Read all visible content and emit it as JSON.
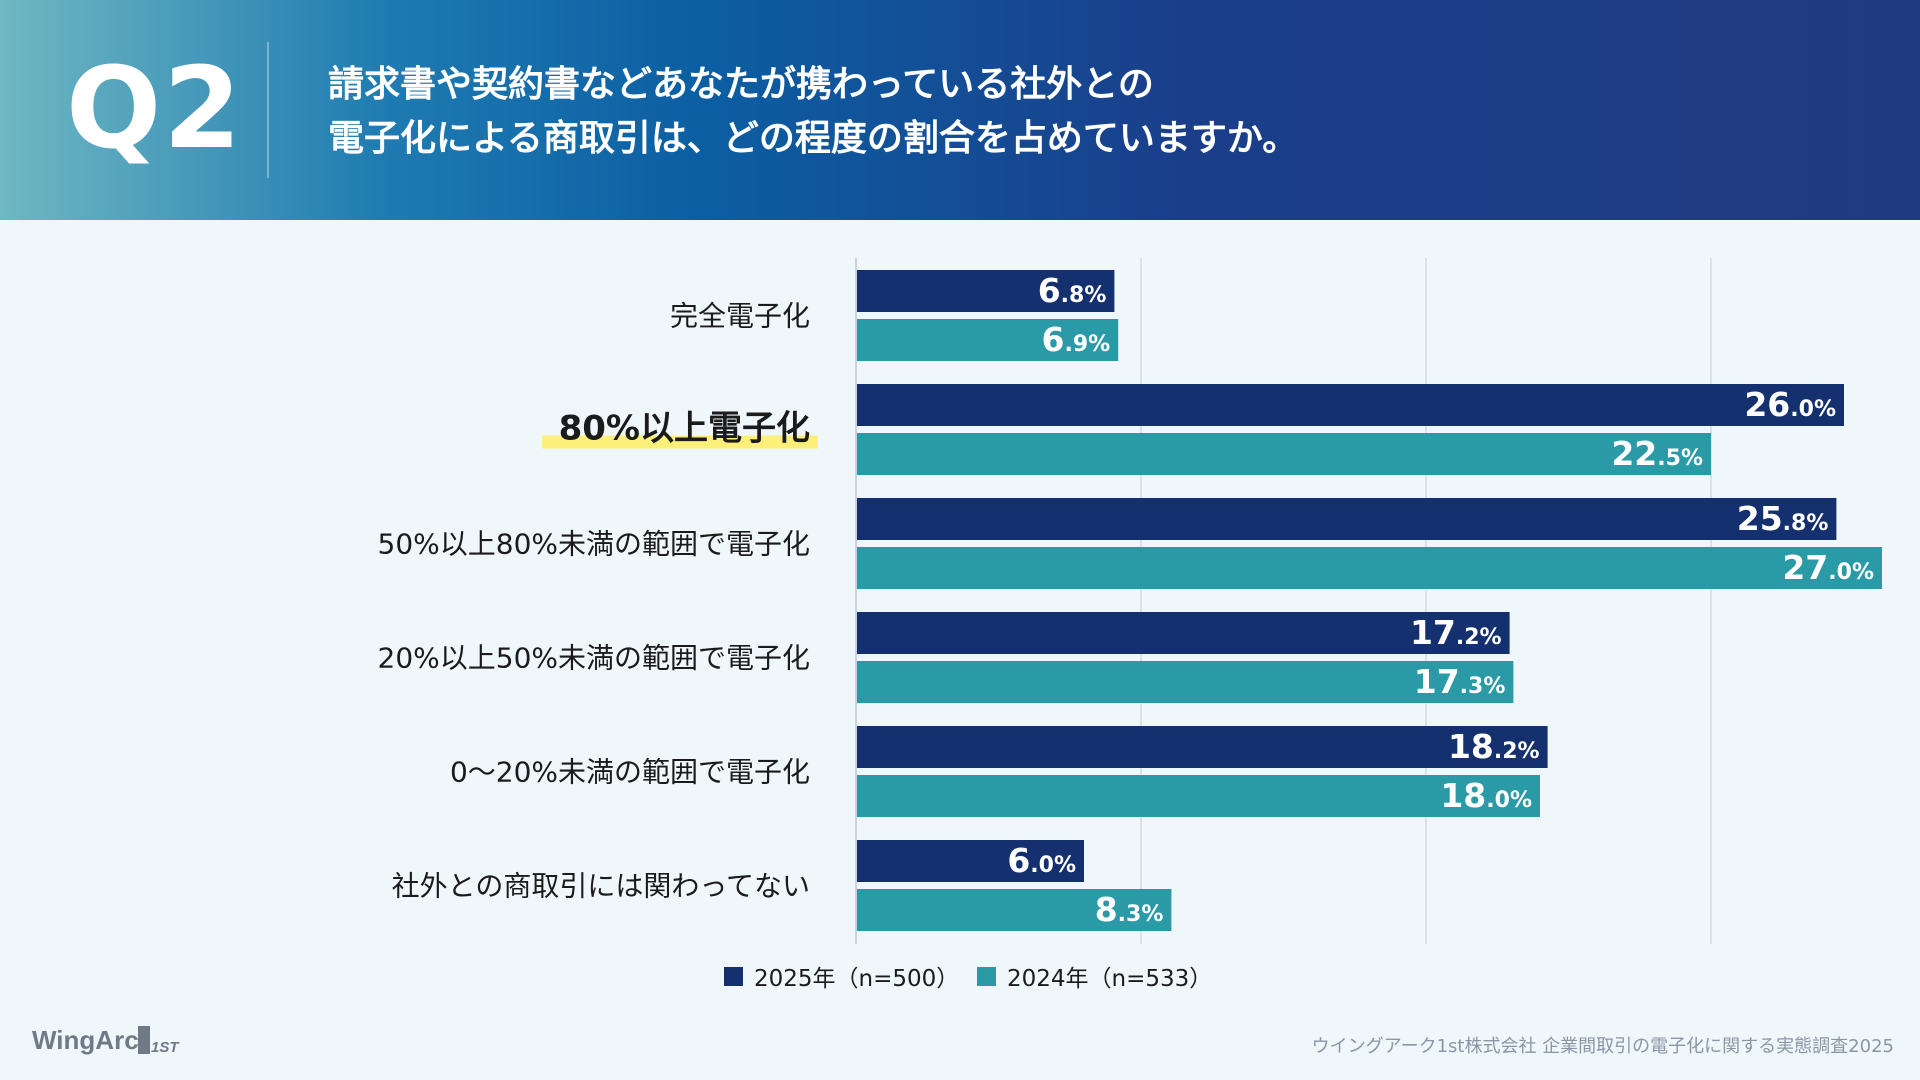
{
  "header": {
    "question_number": "Q2",
    "question_line1": "請求書や契約書などあなたが携わっている社外との",
    "question_line2": "電子化による商取引は、どの程度の割合を占めていますか。"
  },
  "chart_data": {
    "type": "bar",
    "orientation": "horizontal",
    "categories": [
      "完全電子化",
      "80%以上電子化",
      "50%以上80%未満の範囲で電子化",
      "20%以上50%未満の範囲で電子化",
      "0～20%未満の範囲で電子化",
      "社外との商取引には関わってない"
    ],
    "highlighted_category": "80%以上電子化",
    "series": [
      {
        "name": "2025年（n=500）",
        "values": [
          6.8,
          26.0,
          25.8,
          17.2,
          18.2,
          6.0
        ],
        "color": "#15306e"
      },
      {
        "name": "2024年（n=533）",
        "values": [
          6.9,
          22.5,
          27.0,
          17.3,
          18.0,
          8.3
        ],
        "color": "#2a9aa6"
      }
    ],
    "xlim": [
      0,
      30
    ],
    "grid_values": [
      7.5,
      15,
      22.5,
      30
    ],
    "unit": "%",
    "legend_position": "bottom-center",
    "highlight_color": "#fdf07a",
    "value_text_color": "#ffffff"
  },
  "logo": {
    "text": "WingArc",
    "suffix": "1ST"
  },
  "footer": {
    "source": "ウイングアーク1st株式会社 企業間取引の電子化に関する実態調査2025"
  }
}
